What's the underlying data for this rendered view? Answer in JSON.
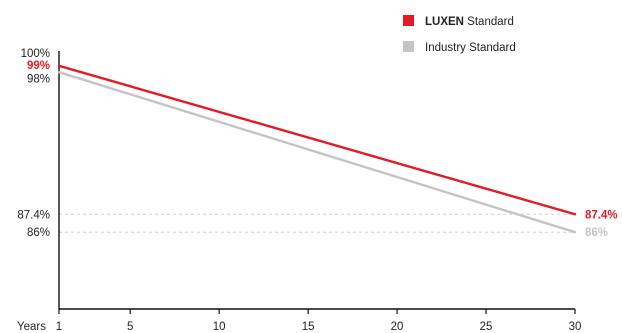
{
  "chart_data": {
    "type": "line",
    "title": "",
    "xlabel": "Years",
    "ylabel": "",
    "xlim": [
      1,
      30
    ],
    "ylim": [
      80,
      100
    ],
    "x_ticks": [
      1,
      5,
      10,
      15,
      20,
      25,
      30
    ],
    "y_ticks": [
      {
        "value": 100,
        "label": "100%"
      },
      {
        "value": 98,
        "label": "98%"
      },
      {
        "value": 87.4,
        "label": "87.4%",
        "dashed": true
      },
      {
        "value": 86,
        "label": "86%",
        "dashed": true
      }
    ],
    "grid": false,
    "legend_position": "top-right",
    "legend": {
      "luxen_brand": "LUXEN",
      "luxen_suffix": " Standard",
      "industry": "Industry Standard"
    },
    "series": [
      {
        "name": "LUXEN Standard",
        "color": "#e31b23",
        "x": [
          1,
          30
        ],
        "values": [
          99,
          87.4
        ],
        "start_label": "99%",
        "end_label": "87.4%"
      },
      {
        "name": "Industry Standard",
        "color": "#c4c4c4",
        "x": [
          1,
          30
        ],
        "values": [
          98.5,
          86
        ],
        "end_label": "86%"
      }
    ]
  }
}
